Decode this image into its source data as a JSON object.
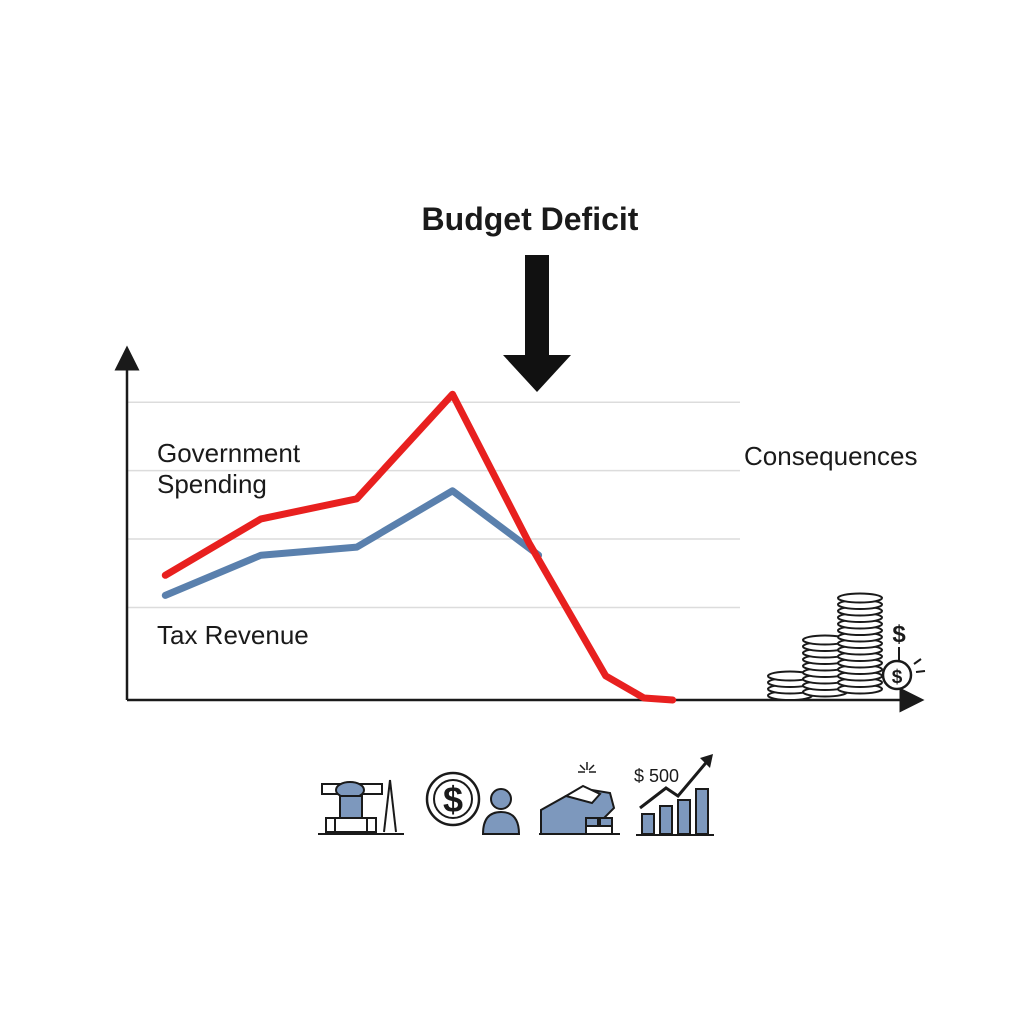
{
  "chart_data": {
    "type": "line",
    "title": "Budget Deficit",
    "annotations": [
      "Consequences"
    ],
    "x": [
      1,
      2,
      3,
      4,
      5,
      6,
      7,
      8
    ],
    "xlim": [
      0.6,
      8.8
    ],
    "ylim": [
      0,
      8.5
    ],
    "grid": true,
    "series": [
      {
        "name": "Government Spending",
        "color": "#e8201f",
        "points": [
          [
            1,
            3.1
          ],
          [
            2,
            4.5
          ],
          [
            3,
            5.0
          ],
          [
            4,
            7.6
          ],
          [
            4.8,
            3.9
          ],
          [
            5.6,
            0.6
          ],
          [
            6.0,
            0.05
          ],
          [
            6.3,
            0
          ]
        ]
      },
      {
        "name": "Tax Revenue",
        "color": "#5a80ad",
        "points": [
          [
            1,
            2.6
          ],
          [
            2,
            3.6
          ],
          [
            3,
            3.8
          ],
          [
            4,
            5.2
          ],
          [
            4.9,
            3.6
          ]
        ]
      }
    ]
  },
  "colors": {
    "spending": "#e8201f",
    "revenue": "#5a80ad",
    "axis": "#1a1a1a",
    "grid": "#dcdcdc",
    "icon_fill": "#7d98bd"
  },
  "icons": [
    "coin-stacks-icon",
    "dollar-coin-icon",
    "government-building-icon",
    "dollar-person-icon",
    "factory-icon",
    "growth-chart-icon"
  ],
  "icon_texts": {
    "dollar_sign": "$",
    "growth_amount": "$ 500"
  }
}
